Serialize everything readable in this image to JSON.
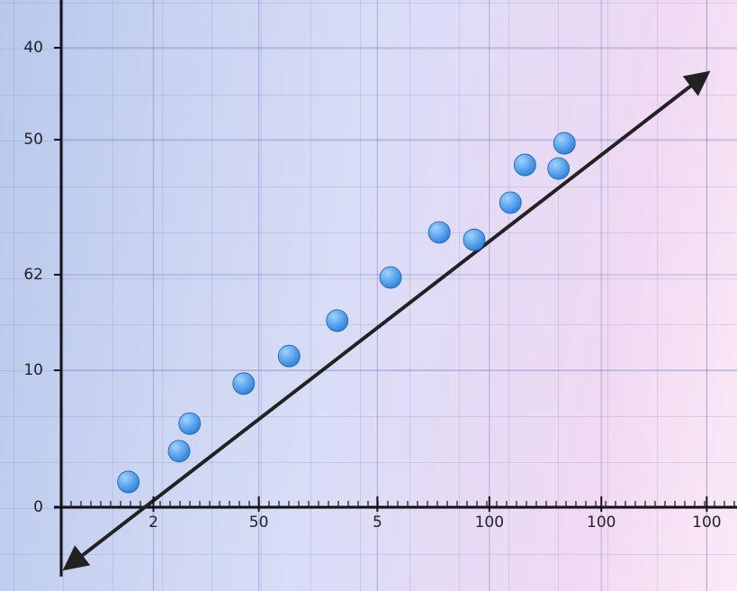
{
  "chart_data": {
    "type": "scatter",
    "x": [
      10.2,
      17.9,
      19.5,
      27.7,
      34.6,
      41.9,
      50,
      57.4,
      62.7,
      68.2,
      70.4,
      75.5,
      76.4
    ],
    "values": [
      5.5,
      12.2,
      18.2,
      26.9,
      32.9,
      40.6,
      50,
      59.8,
      58.2,
      66.3,
      74.5,
      73.7,
      79.2
    ],
    "color": "#2f86e0",
    "xlim": [
      0,
      100
    ],
    "ylim": [
      0,
      100
    ],
    "xticks": [
      {
        "value": 14,
        "label": "2"
      },
      {
        "value": 30,
        "label": "50"
      },
      {
        "value": 48,
        "label": "5"
      },
      {
        "value": 65,
        "label": "100"
      },
      {
        "value": 82,
        "label": "100"
      },
      {
        "value": 98,
        "label": "100"
      }
    ],
    "yticks": [
      {
        "value": 100,
        "label": "40"
      },
      {
        "value": 80,
        "label": "50"
      },
      {
        "value": 50.6,
        "label": "62"
      },
      {
        "value": 29.8,
        "label": "10"
      },
      0
    ],
    "grid": true
  }
}
